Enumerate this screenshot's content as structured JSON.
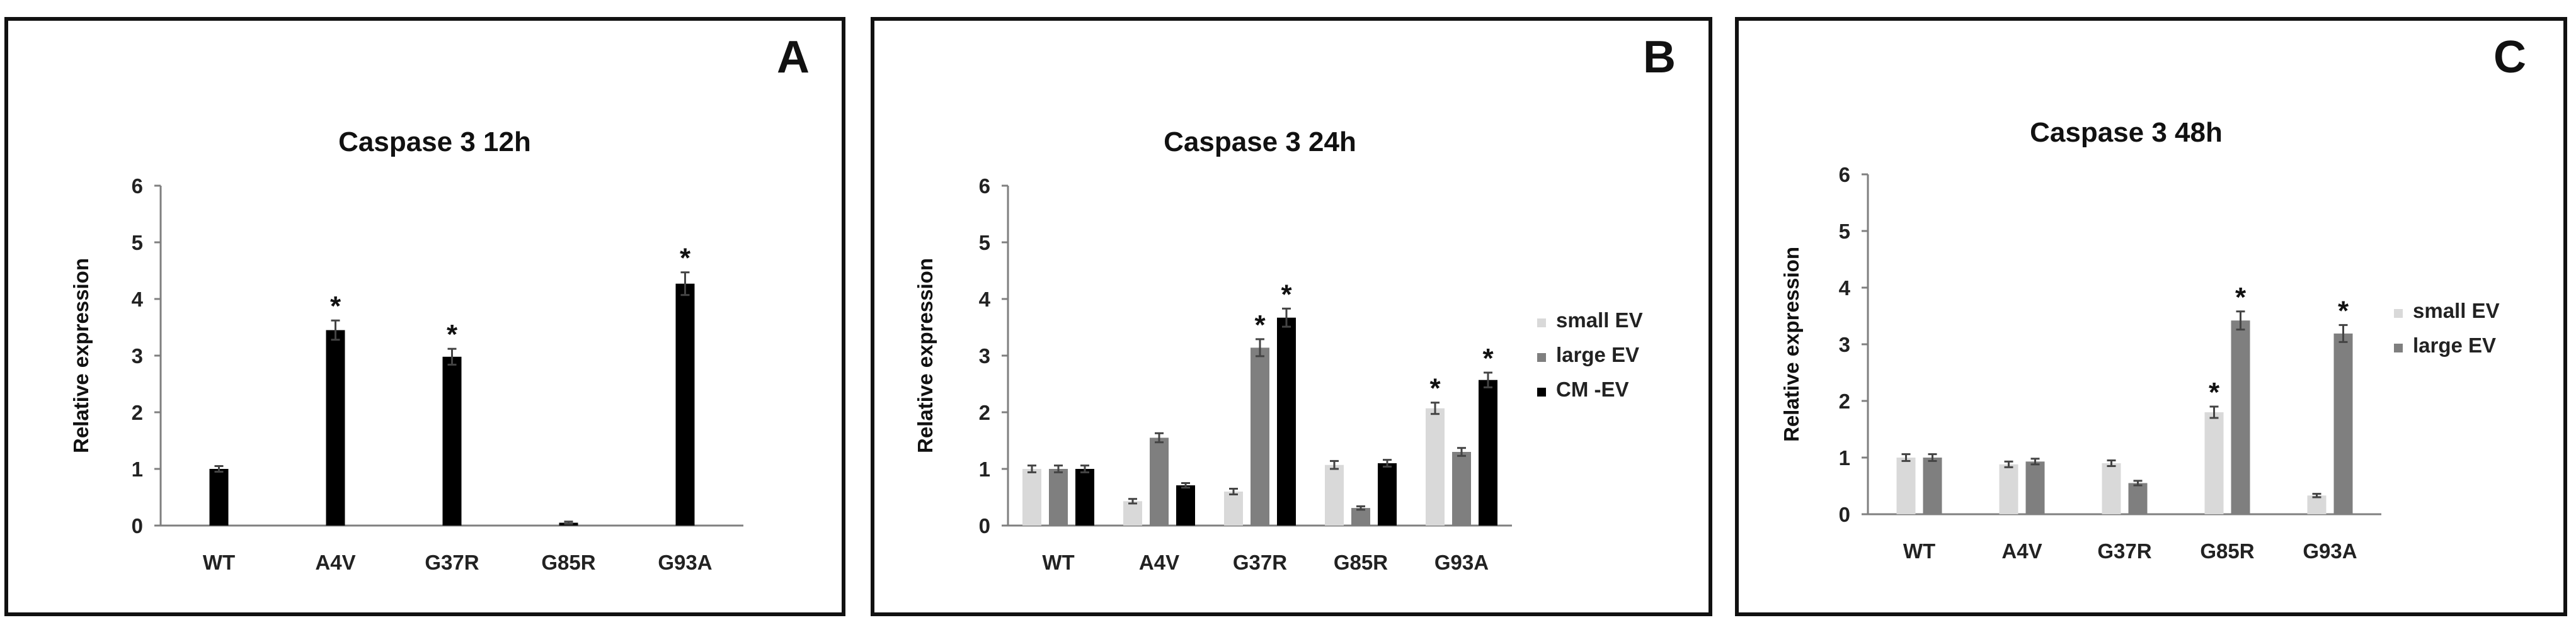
{
  "colors": {
    "small_ev": "#d9d9d9",
    "large_ev": "#7f7f7f",
    "cm_ev": "#000000",
    "frame": "#111111",
    "axis": "#7f7f7f"
  },
  "chart_data": [
    {
      "panel": "A",
      "type": "bar",
      "title": "Caspase 3 12h",
      "xlabel": "",
      "ylabel": "Relative expression",
      "ylim": [
        0,
        6
      ],
      "yticks": [
        0,
        1,
        2,
        3,
        4,
        5,
        6
      ],
      "categories": [
        "WT",
        "A4V",
        "G37R",
        "G85R",
        "G93A"
      ],
      "grid": false,
      "legend": null,
      "series": [
        {
          "name": "CM -EV",
          "color": "#000000",
          "values": [
            1.0,
            3.45,
            2.98,
            0.05,
            4.27
          ],
          "errors": [
            0.05,
            0.17,
            0.14,
            0.02,
            0.2
          ],
          "significant": [
            false,
            true,
            true,
            false,
            true
          ]
        }
      ]
    },
    {
      "panel": "B",
      "type": "bar",
      "title": "Caspase 3 24h",
      "xlabel": "",
      "ylabel": "Relative expression",
      "ylim": [
        0,
        6
      ],
      "yticks": [
        0,
        1,
        2,
        3,
        4,
        5,
        6
      ],
      "categories": [
        "WT",
        "A4V",
        "G37R",
        "G85R",
        "G93A"
      ],
      "grid": false,
      "legend": "right",
      "series": [
        {
          "name": "small EV",
          "color": "#d9d9d9",
          "values": [
            1.0,
            0.43,
            0.6,
            1.07,
            2.07
          ],
          "errors": [
            0.06,
            0.04,
            0.05,
            0.07,
            0.1
          ],
          "significant": [
            false,
            false,
            false,
            false,
            true
          ]
        },
        {
          "name": "large EV",
          "color": "#7f7f7f",
          "values": [
            1.0,
            1.55,
            3.14,
            0.31,
            1.3
          ],
          "errors": [
            0.06,
            0.08,
            0.15,
            0.03,
            0.07
          ],
          "significant": [
            false,
            false,
            true,
            false,
            false
          ]
        },
        {
          "name": "CM -EV",
          "color": "#000000",
          "values": [
            1.0,
            0.71,
            3.67,
            1.1,
            2.57
          ],
          "errors": [
            0.06,
            0.04,
            0.16,
            0.06,
            0.13
          ],
          "significant": [
            false,
            false,
            true,
            false,
            true
          ]
        }
      ]
    },
    {
      "panel": "C",
      "type": "bar",
      "title": "Caspase 3 48h",
      "xlabel": "",
      "ylabel": "Relative expression",
      "ylim": [
        0,
        6
      ],
      "yticks": [
        0,
        1,
        2,
        3,
        4,
        5,
        6
      ],
      "categories": [
        "WT",
        "A4V",
        "G37R",
        "G85R",
        "G93A"
      ],
      "grid": false,
      "legend": "right",
      "series": [
        {
          "name": "small EV",
          "color": "#d9d9d9",
          "values": [
            1.0,
            0.88,
            0.9,
            1.8,
            0.33
          ],
          "errors": [
            0.06,
            0.05,
            0.05,
            0.1,
            0.03
          ],
          "significant": [
            false,
            false,
            false,
            true,
            false
          ]
        },
        {
          "name": "large EV",
          "color": "#7f7f7f",
          "values": [
            1.0,
            0.93,
            0.55,
            3.42,
            3.19
          ],
          "errors": [
            0.06,
            0.05,
            0.04,
            0.16,
            0.15
          ],
          "significant": [
            false,
            false,
            false,
            true,
            true
          ]
        }
      ]
    }
  ]
}
